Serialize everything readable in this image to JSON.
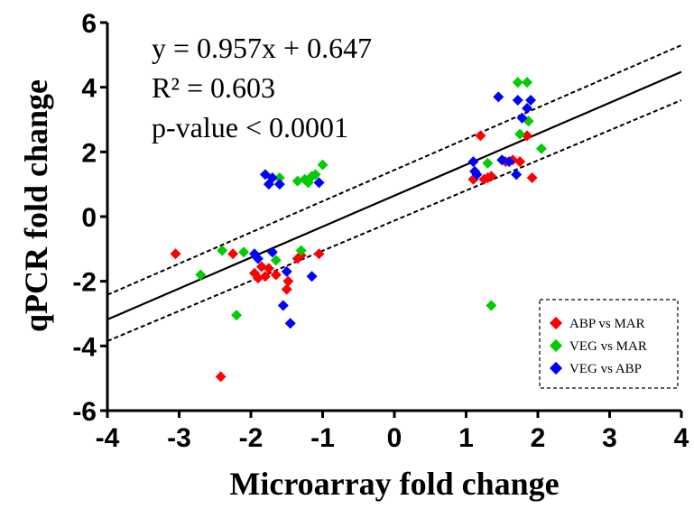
{
  "chart_data": {
    "type": "scatter",
    "xlabel": "Microarray fold change",
    "ylabel": "qPCR fold change",
    "xlim": [
      -4,
      4
    ],
    "ylim": [
      -6,
      6
    ],
    "xticks": [
      "-4",
      "-3",
      "-2",
      "-1",
      "0",
      "1",
      "2",
      "3",
      "4"
    ],
    "yticks": [
      "-6",
      "-4",
      "-2",
      "0",
      "2",
      "4",
      "6"
    ],
    "grid": false,
    "legend_position": "bottom-right",
    "annotations": [
      "y = 0.957x + 0.647",
      "R² = 0.603",
      "p-value < 0.0001"
    ],
    "regression": {
      "slope": 0.957,
      "intercept": 0.647,
      "ci_upper": [
        [
          -4,
          -2.42
        ],
        [
          4,
          5.3
        ]
      ],
      "ci_lower": [
        [
          -4,
          -3.85
        ],
        [
          4,
          3.6
        ]
      ]
    },
    "series": [
      {
        "name": "ABP vs MAR",
        "color": "#ff0000",
        "points": [
          [
            -3.05,
            -1.15
          ],
          [
            -2.42,
            -4.95
          ],
          [
            -2.25,
            -1.15
          ],
          [
            -1.95,
            -1.75
          ],
          [
            -1.9,
            -1.9
          ],
          [
            -1.85,
            -1.55
          ],
          [
            -1.8,
            -1.85
          ],
          [
            -1.75,
            -1.6
          ],
          [
            -1.65,
            -1.8
          ],
          [
            -1.5,
            -2.25
          ],
          [
            -1.48,
            -2.0
          ],
          [
            -1.35,
            -1.3
          ],
          [
            -1.3,
            -1.2
          ],
          [
            -1.05,
            -1.15
          ],
          [
            1.1,
            1.15
          ],
          [
            1.2,
            2.5
          ],
          [
            1.25,
            1.15
          ],
          [
            1.3,
            1.2
          ],
          [
            1.35,
            1.25
          ],
          [
            1.55,
            1.7
          ],
          [
            1.65,
            1.75
          ],
          [
            1.75,
            1.7
          ],
          [
            1.85,
            2.5
          ],
          [
            1.92,
            1.2
          ]
        ]
      },
      {
        "name": "VEG vs MAR",
        "color": "#00cc00",
        "points": [
          [
            -2.7,
            -1.8
          ],
          [
            -2.4,
            -1.05
          ],
          [
            -2.2,
            -3.05
          ],
          [
            -2.1,
            -1.1
          ],
          [
            -1.65,
            -1.35
          ],
          [
            -1.6,
            1.2
          ],
          [
            -1.35,
            1.1
          ],
          [
            -1.3,
            -1.05
          ],
          [
            -1.25,
            1.15
          ],
          [
            -1.2,
            1.05
          ],
          [
            -1.15,
            1.25
          ],
          [
            -1.1,
            1.3
          ],
          [
            -1.0,
            1.6
          ],
          [
            1.3,
            1.65
          ],
          [
            1.35,
            -2.75
          ],
          [
            1.72,
            4.15
          ],
          [
            1.75,
            2.55
          ],
          [
            1.85,
            4.15
          ],
          [
            1.87,
            2.95
          ],
          [
            2.05,
            2.1
          ]
        ]
      },
      {
        "name": "VEG vs ABP",
        "color": "#0000ff",
        "points": [
          [
            -1.95,
            -1.15
          ],
          [
            -1.9,
            -1.3
          ],
          [
            -1.8,
            1.3
          ],
          [
            -1.75,
            1.0
          ],
          [
            -1.7,
            1.2
          ],
          [
            -1.7,
            -1.1
          ],
          [
            -1.6,
            1.0
          ],
          [
            -1.55,
            -2.75
          ],
          [
            -1.5,
            -1.7
          ],
          [
            -1.45,
            -3.3
          ],
          [
            -1.15,
            -1.85
          ],
          [
            -1.05,
            1.05
          ],
          [
            1.1,
            1.7
          ],
          [
            1.12,
            1.4
          ],
          [
            1.15,
            1.3
          ],
          [
            1.45,
            3.7
          ],
          [
            1.5,
            1.75
          ],
          [
            1.6,
            1.7
          ],
          [
            1.7,
            1.3
          ],
          [
            1.72,
            3.6
          ],
          [
            1.78,
            3.05
          ],
          [
            1.85,
            3.35
          ],
          [
            1.9,
            3.6
          ]
        ]
      }
    ]
  }
}
